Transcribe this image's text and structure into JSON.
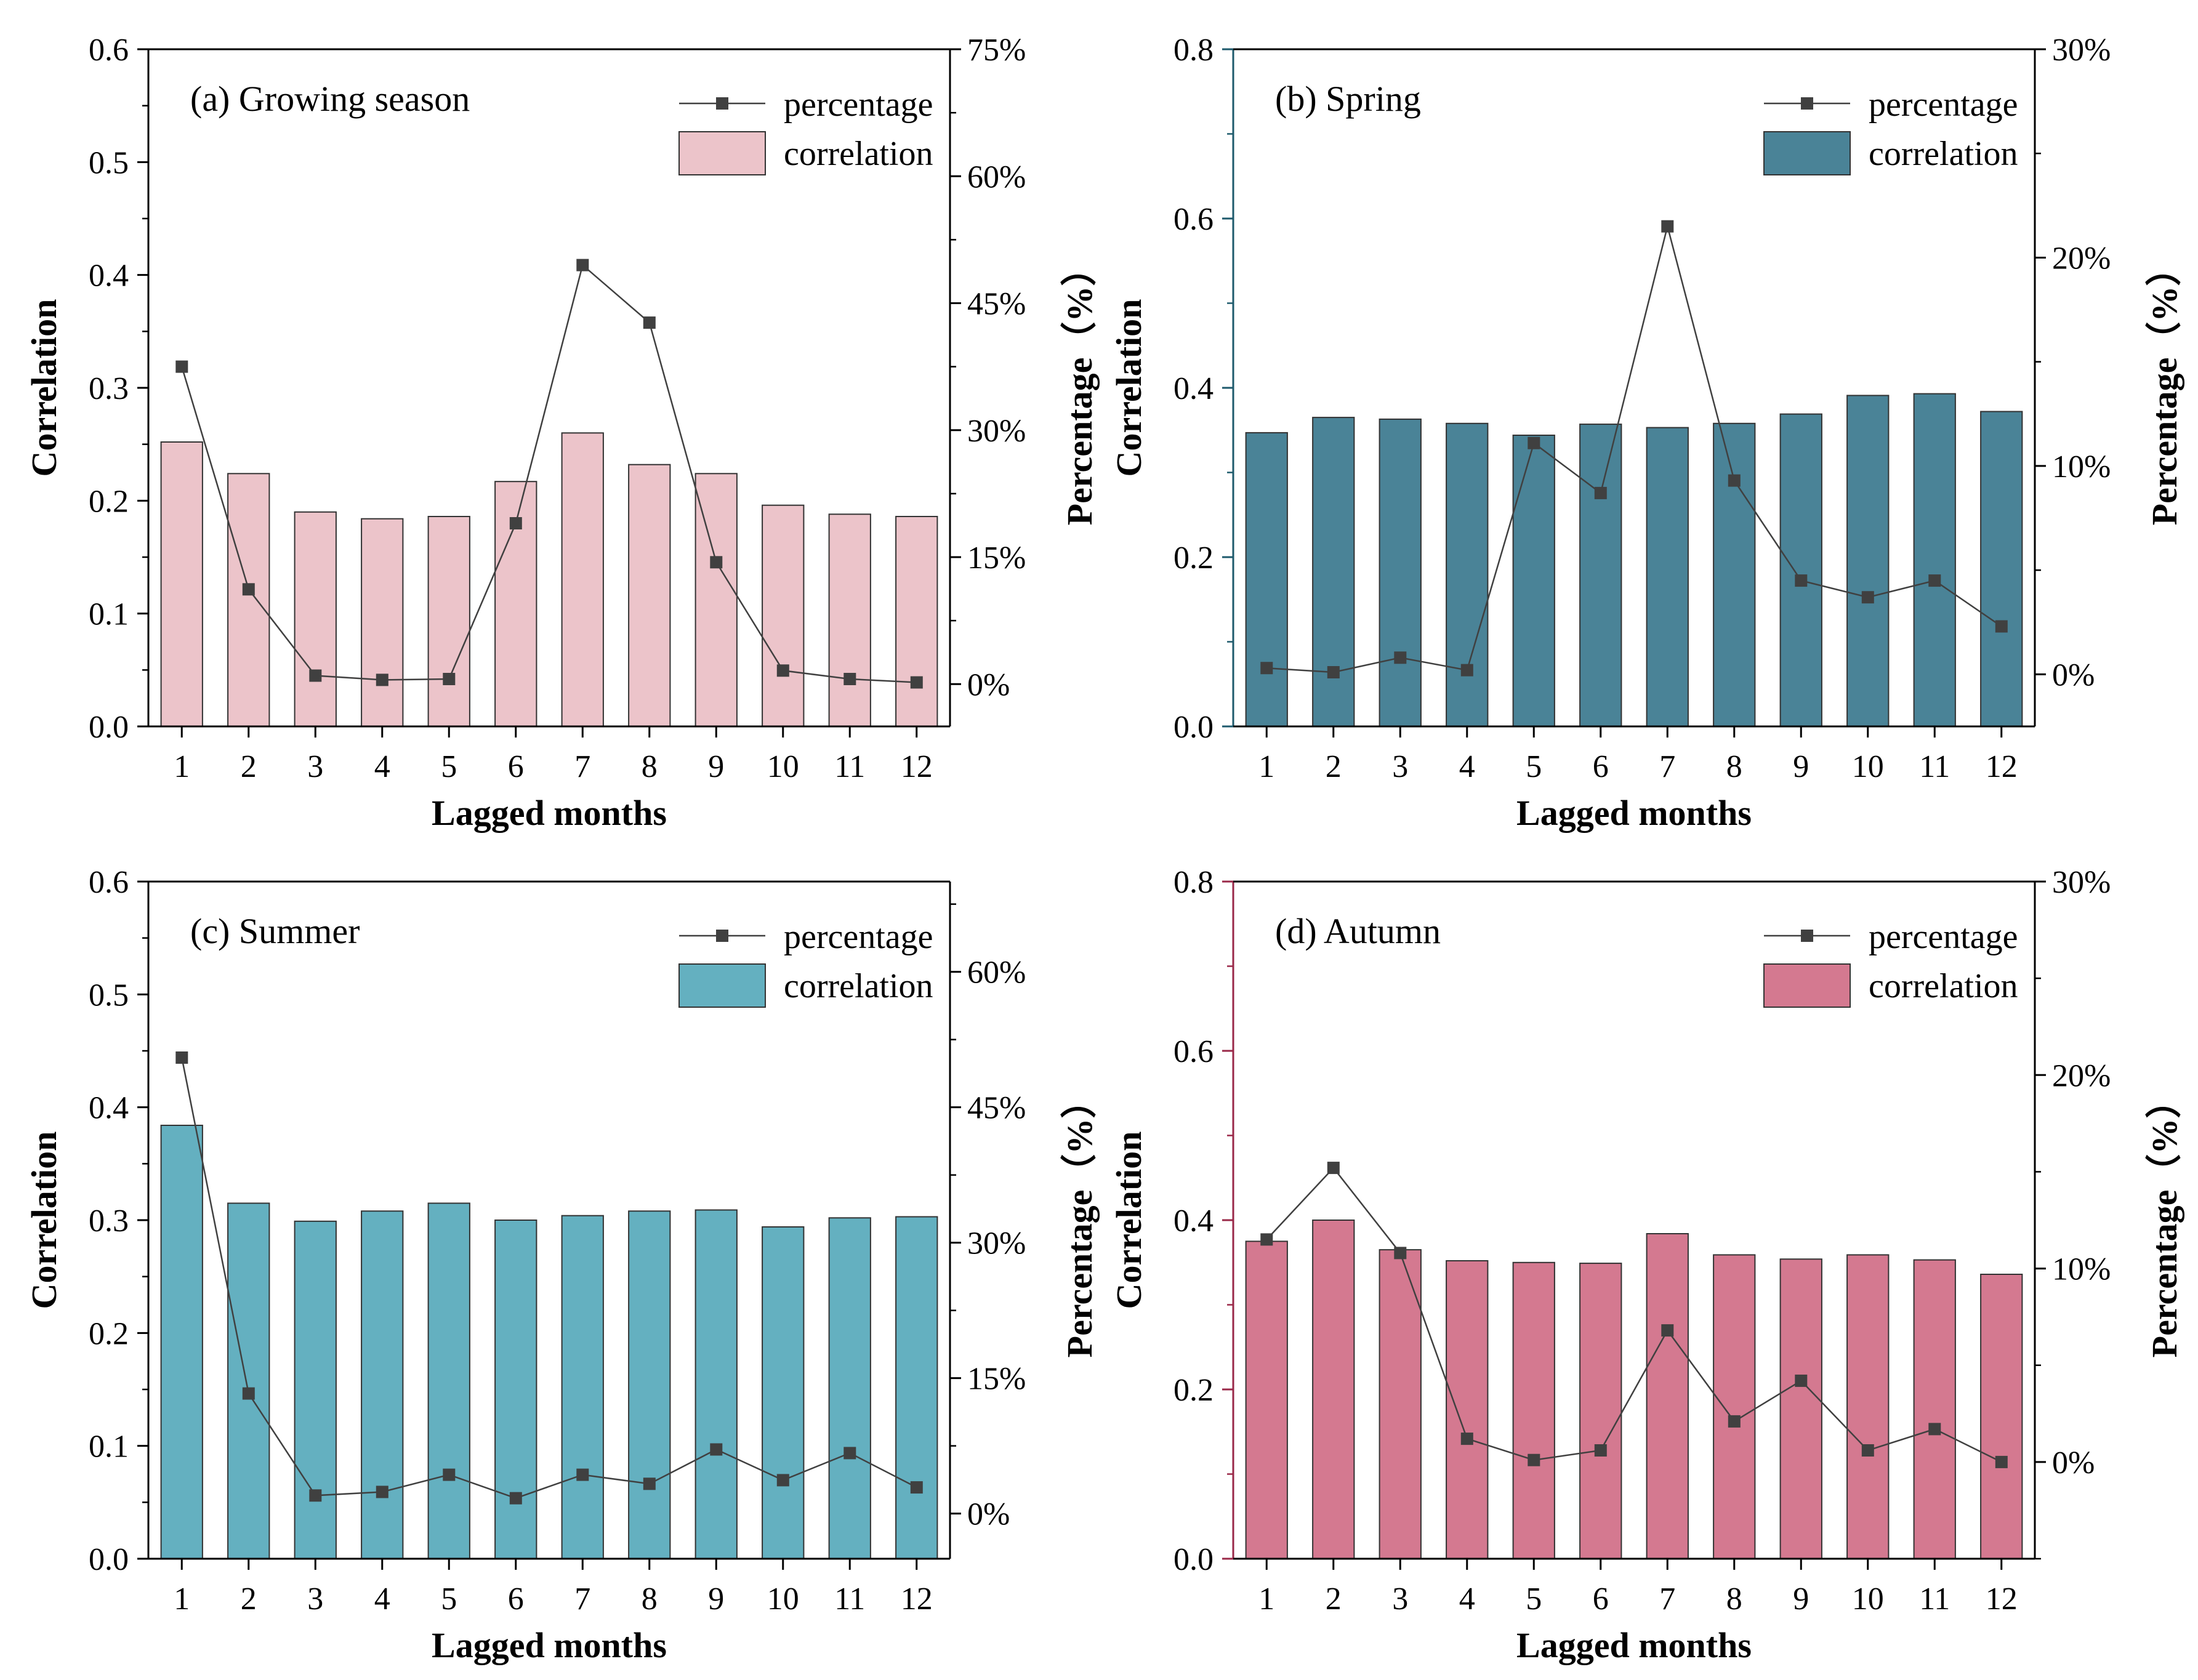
{
  "chart_data": [
    {
      "id": "a",
      "type": "bar",
      "panel_label": "(a) Growing season",
      "categories": [
        "1",
        "2",
        "3",
        "4",
        "5",
        "6",
        "7",
        "8",
        "9",
        "10",
        "11",
        "12"
      ],
      "series": [
        {
          "name": "correlation",
          "type": "bar",
          "axis": "left",
          "color": "#ecc4ca",
          "values": [
            0.252,
            0.224,
            0.19,
            0.184,
            0.186,
            0.217,
            0.26,
            0.232,
            0.224,
            0.196,
            0.188,
            0.186
          ]
        },
        {
          "name": "percentage",
          "type": "line",
          "axis": "right",
          "values": [
            37.5,
            11.2,
            1.0,
            0.5,
            0.6,
            19.0,
            49.5,
            42.7,
            14.4,
            1.6,
            0.6,
            0.2
          ]
        }
      ],
      "xlabel": "Lagged months",
      "ylabel": "Correlation",
      "ylabel_right": "Percentage（%）",
      "ylim": [
        0,
        0.6
      ],
      "yticks": [
        0.0,
        0.1,
        0.2,
        0.3,
        0.4,
        0.5,
        0.6
      ],
      "ytick_labels": [
        "0.0",
        "0.1",
        "0.2",
        "0.3",
        "0.4",
        "0.5",
        "0.6"
      ],
      "y2lim": [
        -5,
        75
      ],
      "y2ticks": [
        0,
        15,
        30,
        45,
        60,
        75
      ],
      "y2tick_labels": [
        "0%",
        "15%",
        "30%",
        "45%",
        "60%",
        "75%"
      ],
      "left_axis_color": "#000000"
    },
    {
      "id": "b",
      "type": "bar",
      "panel_label": "(b) Spring",
      "categories": [
        "1",
        "2",
        "3",
        "4",
        "5",
        "6",
        "7",
        "8",
        "9",
        "10",
        "11",
        "12"
      ],
      "series": [
        {
          "name": "correlation",
          "type": "bar",
          "axis": "left",
          "color": "#4a8397",
          "values": [
            0.347,
            0.365,
            0.363,
            0.358,
            0.344,
            0.357,
            0.353,
            0.358,
            0.369,
            0.391,
            0.393,
            0.372
          ]
        },
        {
          "name": "percentage",
          "type": "line",
          "axis": "right",
          "values": [
            0.3,
            0.1,
            0.8,
            0.2,
            11.1,
            8.7,
            21.5,
            9.3,
            4.5,
            3.7,
            4.5,
            2.3
          ]
        }
      ],
      "xlabel": "Lagged months",
      "ylabel": "Correlation",
      "ylabel_right": "Percentage（%）",
      "ylim": [
        0,
        0.8
      ],
      "yticks": [
        0.0,
        0.2,
        0.4,
        0.6,
        0.8
      ],
      "ytick_labels": [
        "0.0",
        "0.2",
        "0.4",
        "0.6",
        "0.8"
      ],
      "y2lim": [
        -2.5,
        30
      ],
      "y2ticks": [
        0,
        10,
        20,
        30
      ],
      "y2tick_labels": [
        "0%",
        "10%",
        "20%",
        "30%"
      ],
      "left_axis_color": "#1e5a6c"
    },
    {
      "id": "c",
      "type": "bar",
      "panel_label": "(c) Summer",
      "categories": [
        "1",
        "2",
        "3",
        "4",
        "5",
        "6",
        "7",
        "8",
        "9",
        "10",
        "11",
        "12"
      ],
      "series": [
        {
          "name": "correlation",
          "type": "bar",
          "axis": "left",
          "color": "#64b0c0",
          "values": [
            0.384,
            0.315,
            0.299,
            0.308,
            0.315,
            0.3,
            0.304,
            0.308,
            0.309,
            0.294,
            0.302,
            0.303
          ]
        },
        {
          "name": "percentage",
          "type": "line",
          "axis": "right",
          "values": [
            50.5,
            13.3,
            2.0,
            2.4,
            4.3,
            1.7,
            4.3,
            3.3,
            7.1,
            3.7,
            6.7,
            2.9
          ]
        }
      ],
      "xlabel": "Lagged months",
      "ylabel": "Correlation",
      "ylabel_right": "Percentage（%）",
      "ylim": [
        0,
        0.6
      ],
      "yticks": [
        0.0,
        0.1,
        0.2,
        0.3,
        0.4,
        0.5,
        0.6
      ],
      "ytick_labels": [
        "0.0",
        "0.1",
        "0.2",
        "0.3",
        "0.4",
        "0.5",
        "0.6"
      ],
      "y2lim": [
        -5,
        70
      ],
      "y2ticks": [
        0,
        15,
        30,
        45,
        60
      ],
      "y2tick_labels": [
        "0%",
        "15%",
        "30%",
        "45%",
        "60%"
      ],
      "left_axis_color": "#000000"
    },
    {
      "id": "d",
      "type": "bar",
      "panel_label": "(d) Autumn",
      "categories": [
        "1",
        "2",
        "3",
        "4",
        "5",
        "6",
        "7",
        "8",
        "9",
        "10",
        "11",
        "12"
      ],
      "series": [
        {
          "name": "correlation",
          "type": "bar",
          "axis": "left",
          "color": "#d47990",
          "values": [
            0.375,
            0.4,
            0.365,
            0.352,
            0.35,
            0.349,
            0.384,
            0.359,
            0.354,
            0.359,
            0.353,
            0.336
          ]
        },
        {
          "name": "percentage",
          "type": "line",
          "axis": "right",
          "values": [
            11.5,
            15.2,
            10.8,
            1.2,
            0.1,
            0.6,
            6.8,
            2.1,
            4.2,
            0.6,
            1.7,
            0.0
          ]
        }
      ],
      "xlabel": "Lagged months",
      "ylabel": "Correlation",
      "ylabel_right": "Percentage（%）",
      "ylim": [
        0,
        0.8
      ],
      "yticks": [
        0.0,
        0.2,
        0.4,
        0.6,
        0.8
      ],
      "ytick_labels": [
        "0.0",
        "0.2",
        "0.4",
        "0.6",
        "0.8"
      ],
      "y2lim": [
        -5,
        30
      ],
      "y2ticks": [
        0,
        10,
        20,
        30
      ],
      "y2tick_labels": [
        "0%",
        "10%",
        "20%",
        "30%"
      ],
      "left_axis_color": "#9a2848"
    }
  ],
  "style": {
    "line_color": "#404040",
    "marker_color": "#404040",
    "bar_edge_color": "#333333",
    "axis_color": "#000000"
  }
}
